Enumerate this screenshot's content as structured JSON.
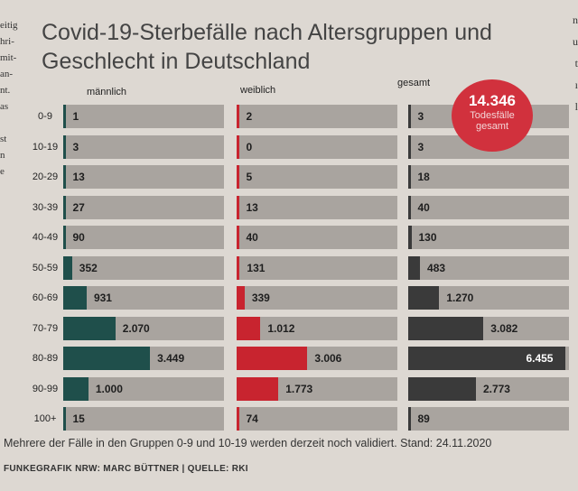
{
  "title": "Covid-19-Sterbefälle nach Altersgruppen und Geschlecht in Deutschland",
  "left_column_fragments": [
    "eitig",
    "hri-",
    "mit-",
    "an-",
    "nt.",
    "as",
    "",
    "st",
    "n",
    "e"
  ],
  "right_column_fragments": [
    "n",
    "u",
    "t",
    "ı",
    "l"
  ],
  "badge": {
    "number": "14.346",
    "text_line1": "Todesfälle",
    "text_line2": "gesamt"
  },
  "colors": {
    "maennlich": "#1f4f4b",
    "weiblich": "#c8242f",
    "gesamt": "#3a3a3a",
    "panel": "#a9a49f",
    "badge": "#d1313d"
  },
  "chart_data": {
    "type": "bar",
    "orientation": "horizontal",
    "categories": [
      "0-9",
      "10-19",
      "20-29",
      "30-39",
      "40-49",
      "50-59",
      "60-69",
      "70-79",
      "80-89",
      "90-99",
      "100+"
    ],
    "series": [
      {
        "name": "männlich",
        "values": [
          1,
          3,
          13,
          27,
          90,
          352,
          931,
          2070,
          3449,
          1000,
          15
        ],
        "labels": [
          "1",
          "3",
          "13",
          "27",
          "90",
          "352",
          "931",
          "2.070",
          "3.449",
          "1.000",
          "15"
        ]
      },
      {
        "name": "weiblich",
        "values": [
          2,
          0,
          5,
          13,
          40,
          131,
          339,
          1012,
          3006,
          1773,
          74
        ],
        "labels": [
          "2",
          "0",
          "5",
          "13",
          "40",
          "131",
          "339",
          "1.012",
          "3.006",
          "1.773",
          "74"
        ]
      },
      {
        "name": "gesamt",
        "values": [
          3,
          3,
          18,
          40,
          130,
          483,
          1270,
          3082,
          6455,
          2773,
          89
        ],
        "labels": [
          "3",
          "3",
          "18",
          "40",
          "130",
          "483",
          "1.270",
          "3.082",
          "6.455",
          "2.773",
          "89"
        ]
      }
    ],
    "title": "Covid-19-Sterbefälle nach Altersgruppen und Geschlecht in Deutschland",
    "xlabel": "",
    "ylabel": ""
  },
  "footnote": "Mehrere der Fälle in den Gruppen 0-9 und 10-19 werden derzeit noch validiert. Stand: 24.11.2020",
  "credit": "FUNKEGRAFIK NRW: MARC BÜTTNER | QUELLE: RKI"
}
